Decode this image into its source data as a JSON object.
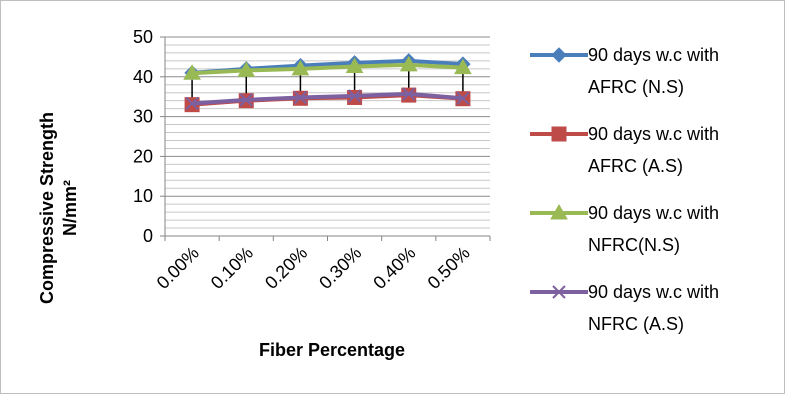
{
  "chart_data": {
    "type": "line",
    "title": "",
    "xlabel": "Fiber Percentage",
    "ylabel_lines": [
      "Compressive Strength",
      "N/mm²"
    ],
    "categories": [
      "0.00%",
      "0.10%",
      "0.20%",
      "0.30%",
      "0.40%",
      "0.50%"
    ],
    "ylim": [
      0,
      50
    ],
    "yticks": [
      0,
      10,
      20,
      30,
      40,
      50
    ],
    "grid": true,
    "legend_position": "right",
    "drop_lines": true,
    "series": [
      {
        "name_lines": [
          "90 days w.c with",
          "AFRC (N.S)"
        ],
        "values": [
          41.0,
          42.0,
          42.8,
          43.5,
          44.0,
          43.2
        ],
        "color": "#4a7ebb",
        "marker": "diamond"
      },
      {
        "name_lines": [
          "90 days w.c with",
          "AFRC (A.S)"
        ],
        "values": [
          33.0,
          34.0,
          34.6,
          34.8,
          35.4,
          34.5
        ],
        "color": "#be4b48",
        "marker": "square"
      },
      {
        "name_lines": [
          "90 days w.c with",
          "NFRC(N.S)"
        ],
        "values": [
          40.9,
          41.6,
          42.0,
          42.6,
          43.0,
          42.3
        ],
        "color": "#98b954",
        "marker": "triangle"
      },
      {
        "name_lines": [
          "90 days w.c with",
          "NFRC (A.S)"
        ],
        "values": [
          33.3,
          34.2,
          34.8,
          35.2,
          35.7,
          34.6
        ],
        "color": "#7d60a0",
        "marker": "x"
      }
    ]
  }
}
